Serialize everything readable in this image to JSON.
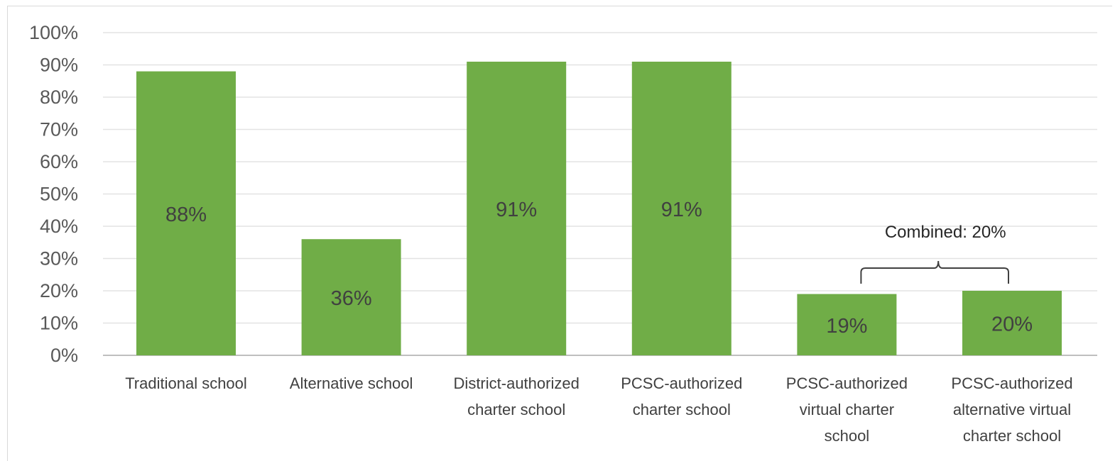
{
  "chart_data": {
    "type": "bar",
    "title": "",
    "xlabel": "",
    "ylabel": "",
    "ylim": [
      0,
      100
    ],
    "y_ticks": [
      "0%",
      "10%",
      "20%",
      "30%",
      "40%",
      "50%",
      "60%",
      "70%",
      "80%",
      "90%",
      "100%"
    ],
    "grid": true,
    "legend": "none",
    "bar_color": "#70ad47",
    "categories": [
      [
        "Traditional school"
      ],
      [
        "Alternative school"
      ],
      [
        "District-authorized",
        "charter school"
      ],
      [
        "PCSC-authorized",
        "charter school"
      ],
      [
        "PCSC-authorized",
        "virtual charter",
        "school"
      ],
      [
        "PCSC-authorized",
        "alternative virtual",
        "charter school"
      ]
    ],
    "values": [
      88,
      36,
      91,
      91,
      19,
      20
    ],
    "data_labels": [
      "88%",
      "36%",
      "91%",
      "91%",
      "19%",
      "20%"
    ],
    "annotations": [
      {
        "text": "Combined:  20%",
        "bracket_categories": [
          4,
          5
        ]
      }
    ]
  }
}
